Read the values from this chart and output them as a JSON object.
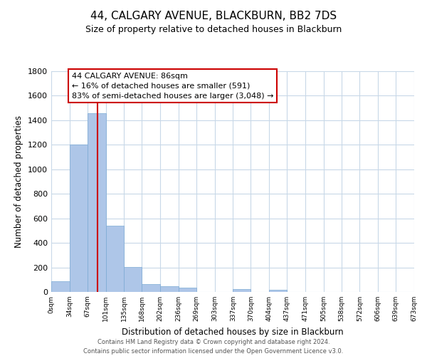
{
  "title": "44, CALGARY AVENUE, BLACKBURN, BB2 7DS",
  "subtitle": "Size of property relative to detached houses in Blackburn",
  "xlabel": "Distribution of detached houses by size in Blackburn",
  "ylabel": "Number of detached properties",
  "bar_edges": [
    0,
    34,
    67,
    101,
    135,
    168,
    202,
    236,
    269,
    303,
    337,
    370,
    404,
    437,
    471,
    505,
    538,
    572,
    606,
    639,
    673
  ],
  "bar_heights": [
    90,
    1200,
    1460,
    540,
    205,
    65,
    48,
    35,
    0,
    0,
    25,
    0,
    15,
    0,
    0,
    0,
    0,
    0,
    0,
    0
  ],
  "bar_color": "#aec6e8",
  "bar_edge_color": "#7baad4",
  "property_line_x": 86,
  "property_line_color": "#cc0000",
  "annotation_line1": "44 CALGARY AVENUE: 86sqm",
  "annotation_line2": "← 16% of detached houses are smaller (591)",
  "annotation_line3": "83% of semi-detached houses are larger (3,048) →",
  "annotation_box_color": "#ffffff",
  "annotation_box_edge": "#cc0000",
  "ylim": [
    0,
    1800
  ],
  "yticks": [
    0,
    200,
    400,
    600,
    800,
    1000,
    1200,
    1400,
    1600,
    1800
  ],
  "tick_labels": [
    "0sqm",
    "34sqm",
    "67sqm",
    "101sqm",
    "135sqm",
    "168sqm",
    "202sqm",
    "236sqm",
    "269sqm",
    "303sqm",
    "337sqm",
    "370sqm",
    "404sqm",
    "437sqm",
    "471sqm",
    "505sqm",
    "538sqm",
    "572sqm",
    "606sqm",
    "639sqm",
    "673sqm"
  ],
  "footer_line1": "Contains HM Land Registry data © Crown copyright and database right 2024.",
  "footer_line2": "Contains public sector information licensed under the Open Government Licence v3.0.",
  "background_color": "#ffffff",
  "grid_color": "#c8d8e8",
  "xlim": [
    0,
    673
  ]
}
